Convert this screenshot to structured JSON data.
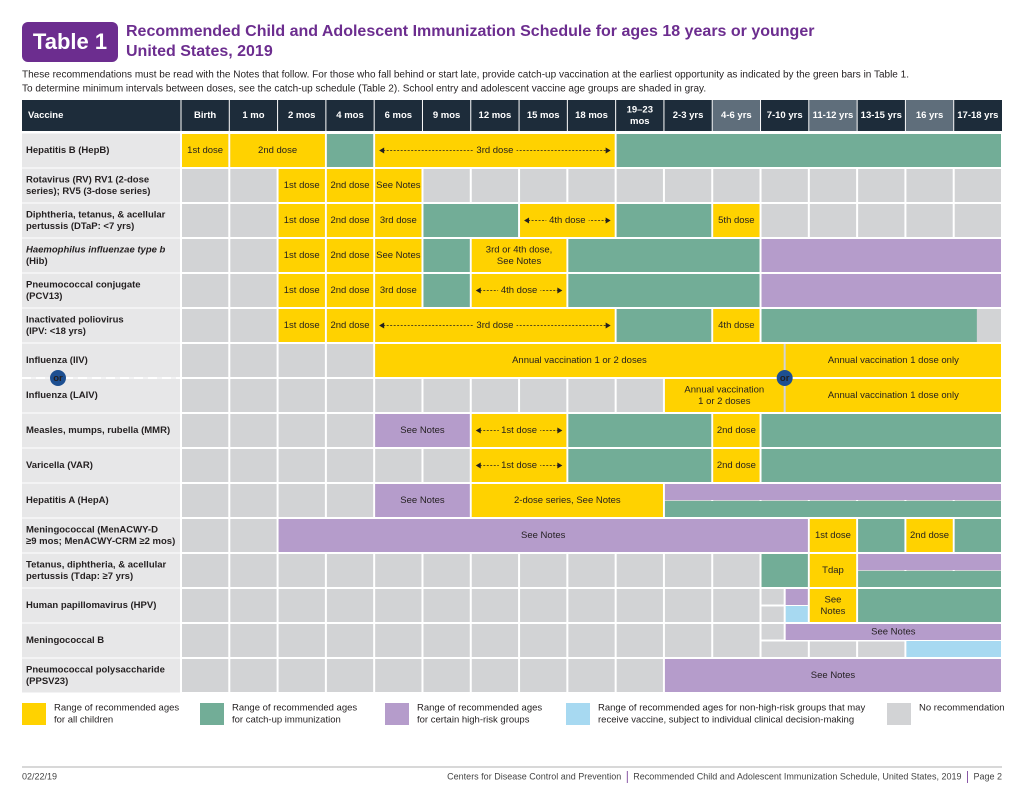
{
  "header": {
    "badge": "Table 1",
    "title": [
      "Recommended Child and Adolescent Immunization Schedule for ages 18 years or younger",
      "United States, 2019"
    ],
    "intro": [
      "These recommendations must be read with the Notes that follow. For those who fall behind or start late, provide catch-up vaccination at the earliest opportunity as indicated by the green bars in Table 1.",
      "To determine minimum intervals between doses, see the catch-up schedule (Table 2). School entry and adolescent vaccine age groups are shaded in gray."
    ]
  },
  "table": {
    "columns": [
      "Vaccine",
      "Birth",
      "1 mo",
      "2 mos",
      "4 mos",
      "6 mos",
      "9 mos",
      "12 mos",
      "15 mos",
      "18 mos",
      [
        "19–23",
        "mos"
      ],
      "2-3 yrs",
      "4-6 yrs",
      "7-10 yrs",
      "11-12 yrs",
      "13-15 yrs",
      "16 yrs",
      "17-18 yrs"
    ],
    "or_label": "or",
    "rows": [
      {
        "vaccine": [
          "Hepatitis B (HepB)"
        ],
        "cells": [
          "1st dose",
          "2nd dose",
          "3rd dose"
        ]
      },
      {
        "vaccine": [
          "Rotavirus (RV) RV1 (2-dose",
          "series); RV5 (3-dose series)"
        ],
        "cells": [
          "1st dose",
          "2nd dose",
          "See Notes"
        ]
      },
      {
        "vaccine": [
          "Diphtheria, tetanus, & acellular",
          "pertussis (DTaP: <7 yrs)"
        ],
        "cells": [
          "1st dose",
          "2nd dose",
          "3rd dose",
          "4th dose",
          "5th dose"
        ]
      },
      {
        "vaccine": [
          "Haemophilus influenzae type b",
          "(Hib)"
        ],
        "cells": [
          "1st dose",
          "2nd dose",
          "See Notes",
          [
            "3rd or 4th dose,",
            "See Notes"
          ]
        ]
      },
      {
        "vaccine": [
          "Pneumococcal conjugate",
          "(PCV13)"
        ],
        "cells": [
          "1st dose",
          "2nd dose",
          "3rd dose",
          "4th dose"
        ]
      },
      {
        "vaccine": [
          "Inactivated poliovirus",
          "(IPV: <18 yrs)"
        ],
        "cells": [
          "1st dose",
          "2nd dose",
          "3rd dose",
          "4th dose"
        ]
      },
      {
        "vaccine": [
          "Influenza (IIV)"
        ],
        "cells": [
          "Annual vaccination 1 or 2 doses",
          "Annual vaccination 1 dose only"
        ]
      },
      {
        "vaccine": [
          "Influenza (LAIV)"
        ],
        "cells": [
          [
            "Annual vaccination",
            "1 or 2 doses"
          ],
          "Annual vaccination 1 dose only"
        ]
      },
      {
        "vaccine": [
          "Measles, mumps, rubella (MMR)"
        ],
        "cells": [
          "See Notes",
          "1st dose",
          "2nd dose"
        ]
      },
      {
        "vaccine": [
          "Varicella (VAR)"
        ],
        "cells": [
          "1st dose",
          "2nd dose"
        ]
      },
      {
        "vaccine": [
          "Hepatitis A (HepA)"
        ],
        "cells": [
          "See Notes",
          "2-dose series, See Notes"
        ]
      },
      {
        "vaccine": [
          "Meningococcal (MenACWY-D",
          "≥9 mos; MenACWY-CRM ≥2 mos)"
        ],
        "cells": [
          "See Notes",
          "1st dose",
          "2nd dose"
        ]
      },
      {
        "vaccine": [
          "Tetanus, diphtheria, & acellular",
          "pertussis (Tdap: ≥7 yrs)"
        ],
        "cells": [
          "Tdap"
        ]
      },
      {
        "vaccine": [
          "Human papillomavirus (HPV)"
        ],
        "cells": [
          [
            "See",
            "Notes"
          ]
        ]
      },
      {
        "vaccine": [
          "Meningococcal B"
        ],
        "cells": [
          "See Notes"
        ]
      },
      {
        "vaccine": [
          "Pneumococcal polysaccharide",
          "(PPSV23)"
        ],
        "cells": [
          "See Notes"
        ]
      }
    ]
  },
  "legend": [
    [
      "Range of recommended ages",
      "for all children"
    ],
    [
      "Range of recommended ages",
      "for catch-up immunization"
    ],
    [
      "Range of recommended ages",
      "for certain high-risk groups"
    ],
    [
      "Range of recommended ages for non-high-risk groups that may",
      "receive vaccine, subject to individual clinical decision-making"
    ],
    [
      "No recommendation"
    ]
  ],
  "footer": {
    "date": "02/22/19",
    "source": "Centers for Disease Control and Prevention",
    "document": "Recommended Child and Adolescent Immunization Schedule, United States, 2019",
    "page": "Page 2"
  }
}
